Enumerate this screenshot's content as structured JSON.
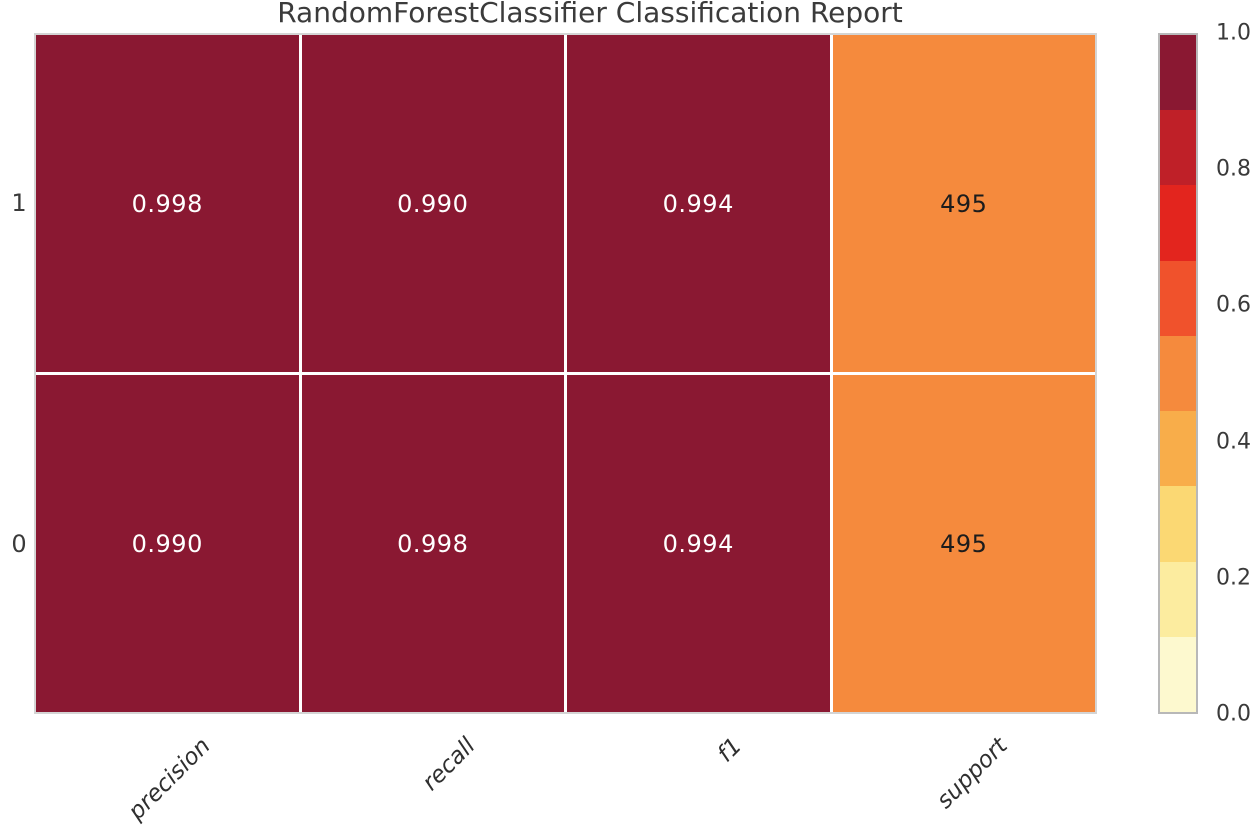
{
  "title": "RandomForestClassifier Classification Report",
  "chart_data": {
    "type": "heatmap",
    "title": "RandomForestClassifier Classification Report",
    "columns": [
      "precision",
      "recall",
      "f1",
      "support"
    ],
    "rows": [
      "1",
      "0"
    ],
    "values": [
      [
        0.998,
        0.99,
        0.994,
        495
      ],
      [
        0.99,
        0.998,
        0.994,
        495
      ]
    ],
    "annotations": [
      [
        "0.998",
        "0.990",
        "0.994",
        "495"
      ],
      [
        "0.990",
        "0.998",
        "0.994",
        "495"
      ]
    ],
    "cell_colors": [
      [
        "#8a1832",
        "#8a1832",
        "#8a1832",
        "#f58a3d"
      ],
      [
        "#8a1832",
        "#8a1832",
        "#8a1832",
        "#f58a3d"
      ]
    ],
    "annotation_colors": [
      [
        "#ffffff",
        "#ffffff",
        "#ffffff",
        "#1c1c1c"
      ],
      [
        "#ffffff",
        "#ffffff",
        "#ffffff",
        "#1c1c1c"
      ]
    ],
    "colorbar": {
      "ticks": [
        "1.0",
        "0.8",
        "0.6",
        "0.4",
        "0.2",
        "0.0"
      ],
      "range": [
        0.0,
        1.0
      ],
      "palette_top_to_bottom": [
        "#8a1832",
        "#bf2028",
        "#e3251e",
        "#f0522c",
        "#f58a3d",
        "#f8ad4a",
        "#fbd873",
        "#fcec9f",
        "#fdf9cf"
      ]
    },
    "layout": {
      "grid_line_color": "#ffffff",
      "legend_position": "right-colorbar",
      "x_tick_rotation_deg": 45,
      "x_tick_style": "italic"
    }
  }
}
